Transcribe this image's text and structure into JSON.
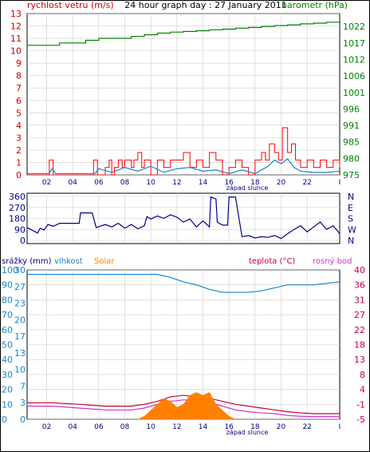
{
  "chart_data": [
    {
      "type": "line",
      "title": "24 hour graph day : 27 January 2011",
      "left_axis_label": "rychlost vetru (m/s)",
      "right_axis_label": "barometr (hPa)",
      "left_ticks": [
        0,
        1,
        2,
        3,
        4,
        5,
        6,
        7,
        8,
        9,
        10,
        11,
        12,
        13
      ],
      "right_ticks": [
        975,
        980,
        985,
        991,
        996,
        1001,
        1006,
        1012,
        1017,
        1022
      ],
      "x_ticks": [
        "02",
        "04",
        "06",
        "08",
        "10",
        "12",
        "14",
        "16",
        "18",
        "20",
        "22"
      ],
      "x_annotation": "západ slunce",
      "colors": {
        "gust": "#ff0000",
        "wind": "#1a82cc",
        "pressure": "#008000",
        "axis_left": "#cc0000",
        "axis_right": "#008000"
      },
      "series": [
        {
          "role": "pressure",
          "x": [
            0,
            1.2,
            2.5,
            3,
            4.5,
            5.5,
            7,
            8,
            9,
            10,
            11,
            12,
            13,
            14,
            15,
            16,
            17,
            18,
            19,
            20,
            21,
            22,
            23,
            24
          ],
          "y": [
            1016.3,
            1016.3,
            1017,
            1017,
            1017.8,
            1018.4,
            1018.4,
            1019,
            1019.5,
            1020,
            1020.3,
            1020.5,
            1020.7,
            1021,
            1021.2,
            1021.5,
            1021.7,
            1022,
            1022.3,
            1022.5,
            1022.8,
            1023,
            1023.3,
            1023.3
          ]
        },
        {
          "role": "gust",
          "x": [
            0,
            1.6,
            1.7,
            1.9,
            2.0,
            4.0,
            5.0,
            5.1,
            5.3,
            5.4,
            6.0,
            6.3,
            6.5,
            6.7,
            7.0,
            7.3,
            7.5,
            8.0,
            8.2,
            8.5,
            8.8,
            9.0,
            9.3,
            9.5,
            10.0,
            10.5,
            11.0,
            11.5,
            12.0,
            12.5,
            13.0,
            13.5,
            14.0,
            14.5,
            15.0,
            15.5,
            16.0,
            16.5,
            17.0,
            17.5,
            18.0,
            18.3,
            18.6,
            19.0,
            19.3,
            19.6,
            20.0,
            20.3,
            20.6,
            21.0,
            21.5,
            22.0,
            22.5,
            23.0,
            23.5,
            24.0
          ],
          "y": [
            0,
            0,
            1.2,
            1.2,
            0,
            0,
            0,
            1.2,
            1.2,
            0,
            0.6,
            1.2,
            0,
            0.6,
            1.2,
            0.6,
            1.2,
            0.6,
            1.2,
            1.8,
            0.6,
            1.2,
            1.2,
            0,
            1.2,
            0.6,
            1.2,
            1.2,
            1.8,
            0.6,
            1.2,
            0.6,
            1.8,
            1.2,
            0,
            0.6,
            1.2,
            0.6,
            0,
            1.2,
            1.8,
            1.2,
            2.5,
            1.8,
            1.2,
            3.8,
            1.8,
            2.5,
            1.2,
            0.6,
            1.2,
            0.6,
            1.2,
            0.6,
            1.2,
            0.6
          ]
        },
        {
          "role": "wind",
          "x": [
            0,
            1.7,
            1.9,
            2.2,
            5.2,
            5.5,
            6.5,
            7.5,
            8.5,
            9.5,
            10.5,
            11.5,
            12.5,
            13.5,
            14.5,
            15.5,
            16.5,
            17.5,
            18.5,
            19.0,
            19.5,
            20.0,
            20.5,
            21.0,
            22.0,
            23.0,
            24.0
          ],
          "y": [
            0.1,
            0.1,
            0.5,
            0.1,
            0.1,
            0.5,
            0.2,
            0.6,
            0.3,
            0.7,
            0.2,
            0.5,
            0.6,
            0.3,
            0.4,
            0.1,
            0.4,
            0.1,
            0.7,
            1.2,
            0.9,
            1.3,
            0.6,
            0.3,
            0.2,
            0.2,
            0.3
          ]
        }
      ]
    },
    {
      "type": "line",
      "left_ticks": [
        0,
        90,
        180,
        270,
        360
      ],
      "left_tick_labels": [
        "0",
        "90",
        "180",
        "270",
        "360"
      ],
      "right_labels": [
        "N",
        "W",
        "S",
        "E",
        "N"
      ],
      "colors": {
        "direction": "#00008b"
      },
      "series": [
        {
          "role": "wind-direction",
          "x": [
            0,
            0.8,
            1.0,
            1.3,
            1.6,
            2.0,
            2.5,
            3.0,
            4.0,
            4.1,
            5.0,
            5.3,
            6.0,
            6.5,
            7.0,
            7.5,
            8.0,
            8.5,
            9.0,
            9.2,
            9.5,
            10.0,
            10.5,
            11.0,
            11.5,
            12.0,
            12.5,
            13.0,
            13.5,
            14.0,
            14.1,
            14.5,
            14.6,
            15.0,
            15.4,
            15.5,
            16.0,
            16.5,
            17.0,
            17.5,
            18.0,
            18.5,
            19.0,
            19.5,
            20.0,
            20.5,
            21.0,
            21.5,
            22.0,
            22.5,
            23.0,
            23.5,
            24.0
          ],
          "y": [
            105,
            60,
            100,
            85,
            130,
            115,
            140,
            140,
            140,
            225,
            225,
            105,
            130,
            110,
            140,
            100,
            130,
            95,
            120,
            195,
            175,
            200,
            180,
            210,
            190,
            150,
            175,
            110,
            160,
            110,
            355,
            340,
            150,
            125,
            125,
            355,
            355,
            30,
            40,
            20,
            30,
            25,
            40,
            15,
            55,
            90,
            120,
            70,
            110,
            150,
            90,
            120,
            55
          ]
        }
      ]
    },
    {
      "type": "line",
      "left_label_1": "srážky (mm)",
      "left_label_2": "vlhkost",
      "left_label_3": "Solar",
      "right_label_1": "teplota (°C)",
      "right_label_2": "rosný bod",
      "left_ticks": [
        0,
        3,
        7,
        10,
        13,
        17,
        20,
        23,
        27,
        30
      ],
      "left_ticks_inner": [
        0,
        10,
        20,
        30,
        40,
        50,
        60,
        70,
        80,
        90,
        100
      ],
      "right_ticks": [
        -5,
        -1,
        4,
        8,
        13,
        18,
        22,
        27,
        31,
        36,
        40
      ],
      "x_ticks": [
        "02",
        "04",
        "06",
        "08",
        "10",
        "12",
        "14",
        "16",
        "18",
        "20",
        "22"
      ],
      "x_annotation": "západ slunce",
      "colors": {
        "humidity": "#1a82cc",
        "solar": "#ff8000",
        "temperature": "#cc0033",
        "dewpoint": "#cc33cc",
        "rain": "#00008b",
        "axis_left": "#1a82cc",
        "axis_right": "#cc0033"
      },
      "series": [
        {
          "role": "humidity",
          "x": [
            0,
            2,
            4,
            6,
            8,
            10,
            11,
            12,
            13,
            14,
            15,
            16,
            17,
            18,
            19,
            20,
            21,
            22,
            23,
            24
          ],
          "y": [
            97,
            97,
            97,
            97,
            97,
            97,
            95,
            92,
            90,
            87,
            85,
            85,
            85,
            86,
            88,
            90,
            90,
            90,
            91,
            92
          ]
        },
        {
          "role": "temperature",
          "x": [
            0,
            2,
            4,
            6,
            8,
            9,
            10,
            11,
            12,
            13,
            14,
            15,
            16,
            17,
            18,
            19,
            20,
            21,
            22,
            23,
            24
          ],
          "y": [
            -0.5,
            -0.5,
            -1,
            -1.5,
            -1.5,
            -1,
            0,
            1.5,
            2,
            1.5,
            1,
            0,
            -1,
            -1.5,
            -2,
            -2.5,
            -3,
            -3.3,
            -3.5,
            -3.5,
            -3.5
          ]
        },
        {
          "role": "dewpoint",
          "x": [
            0,
            2,
            4,
            6,
            8,
            9,
            10,
            11,
            12,
            13,
            14,
            15,
            16,
            17,
            18,
            19,
            20,
            21,
            22,
            23,
            24
          ],
          "y": [
            -1.5,
            -1.5,
            -2,
            -2.5,
            -2.5,
            -2,
            -1,
            0,
            0.5,
            0.2,
            -0.5,
            -1.5,
            -2.5,
            -3,
            -3.3,
            -3.5,
            -4,
            -4.2,
            -4.3,
            -4.3,
            -4.3
          ]
        },
        {
          "role": "solar",
          "x": [
            8.5,
            9,
            9.5,
            10,
            10.5,
            11,
            11.5,
            12,
            12.5,
            13,
            13.5,
            14,
            14.5,
            15,
            15.5,
            16
          ],
          "y": [
            0,
            1,
            3,
            5,
            7,
            6,
            4,
            5,
            8,
            9,
            8,
            9,
            5,
            3,
            1,
            0
          ]
        }
      ]
    }
  ]
}
